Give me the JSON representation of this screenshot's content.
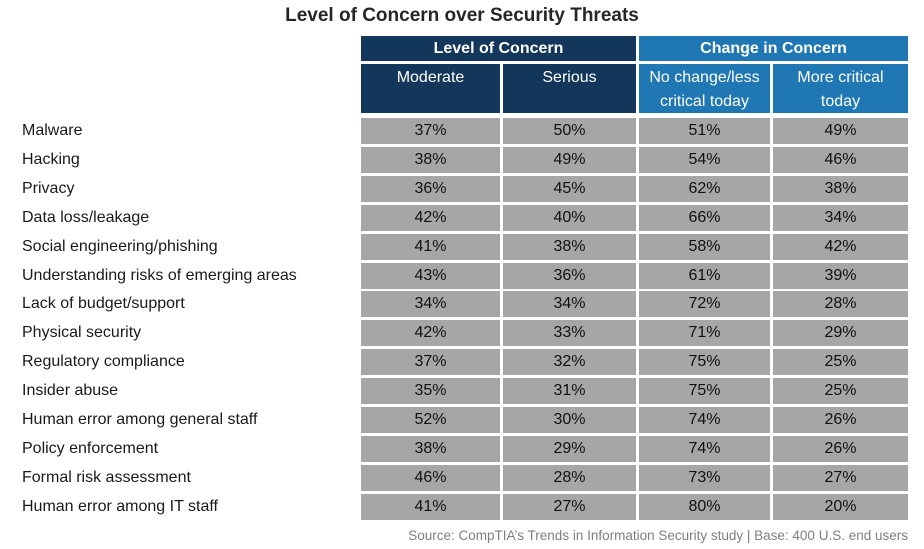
{
  "chart_data": {
    "type": "table",
    "title": "Level of Concern over Security Threats",
    "column_groups": [
      "Level of Concern",
      "Change in Concern"
    ],
    "columns": [
      "Moderate",
      "Serious",
      "No change/less critical today",
      "More critical today"
    ],
    "column_lines": [
      [
        "Moderate"
      ],
      [
        "Serious"
      ],
      [
        "No change/less",
        "critical today"
      ],
      [
        "More critical",
        "today"
      ]
    ],
    "rows": [
      {
        "label": "Malware",
        "values": [
          "37%",
          "50%",
          "51%",
          "49%"
        ]
      },
      {
        "label": "Hacking",
        "values": [
          "38%",
          "49%",
          "54%",
          "46%"
        ]
      },
      {
        "label": "Privacy",
        "values": [
          "36%",
          "45%",
          "62%",
          "38%"
        ]
      },
      {
        "label": "Data loss/leakage",
        "values": [
          "42%",
          "40%",
          "66%",
          "34%"
        ]
      },
      {
        "label": "Social engineering/phishing",
        "values": [
          "41%",
          "38%",
          "58%",
          "42%"
        ]
      },
      {
        "label": "Understanding  risks of emerging areas",
        "values": [
          "43%",
          "36%",
          "61%",
          "39%"
        ]
      },
      {
        "label": "Lack of budget/support",
        "values": [
          "34%",
          "34%",
          "72%",
          "28%"
        ]
      },
      {
        "label": "Physical security",
        "values": [
          "42%",
          "33%",
          "71%",
          "29%"
        ]
      },
      {
        "label": "Regulatory  compliance",
        "values": [
          "37%",
          "32%",
          "75%",
          "25%"
        ]
      },
      {
        "label": "Insider abuse",
        "values": [
          "35%",
          "31%",
          "75%",
          "25%"
        ]
      },
      {
        "label": "Human error among general staff",
        "values": [
          "52%",
          "30%",
          "74%",
          "26%"
        ]
      },
      {
        "label": "Policy enforcement",
        "values": [
          "38%",
          "29%",
          "74%",
          "26%"
        ]
      },
      {
        "label": "Formal risk assessment",
        "values": [
          "46%",
          "28%",
          "73%",
          "27%"
        ]
      },
      {
        "label": "Human error among IT staff",
        "values": [
          "41%",
          "27%",
          "80%",
          "20%"
        ]
      }
    ],
    "source": "Source: CompTIA’s Trends in Information Security study  |  Base: 400 U.S. end users"
  },
  "colors": {
    "level_header": "#13375a",
    "change_header": "#1f77b4",
    "cell": "#a6a6a6"
  }
}
